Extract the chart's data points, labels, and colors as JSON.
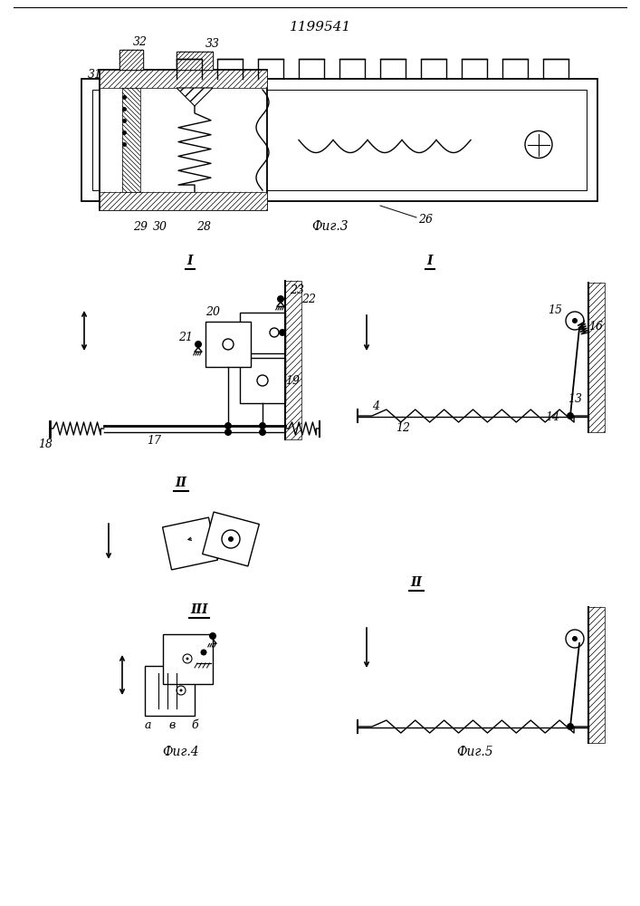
{
  "title": "1199541",
  "bg_color": "#ffffff",
  "fig3_label": "Фиг.3",
  "fig4_label": "Фиг.4",
  "fig5_label": "Фиг.5"
}
